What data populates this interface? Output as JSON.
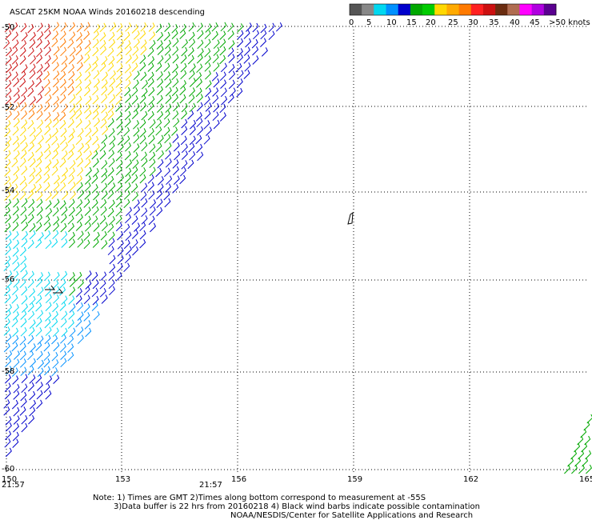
{
  "title": "ASCAT 25KM NOAA Winds 20160218 descending",
  "legend": {
    "colors": [
      "#555555",
      "#888888",
      "#00d8f0",
      "#0090ff",
      "#0000cc",
      "#00a800",
      "#00cc00",
      "#ffd800",
      "#ffaa00",
      "#ff7a00",
      "#ff2020",
      "#cc1010",
      "#6a2c10",
      "#b06c50",
      "#ff00ff",
      "#b000e0",
      "#5a0090"
    ],
    "labels": [
      "0",
      "5",
      "10",
      "15",
      "20",
      "25",
      "30",
      "35",
      "40",
      "45",
      ">50 knots"
    ]
  },
  "map": {
    "lon_labels": [
      "150",
      "153",
      "156",
      "159",
      "162",
      "165"
    ],
    "lat_labels": [
      "-50",
      "-52",
      "-54",
      "-56",
      "-58",
      "-60"
    ],
    "time_labels": [
      "21:57",
      "21:57"
    ],
    "time_label_color": "#800080"
  },
  "notes": [
    "Note: 1) Times are GMT 2)Times along bottom correspond to measurement at -55S",
    "3)Data buffer is 22 hrs from 20160218 4) Black wind barbs indicate possible contamination",
    "NOAA/NESDIS/Center for Satellite Applications and Research"
  ]
}
